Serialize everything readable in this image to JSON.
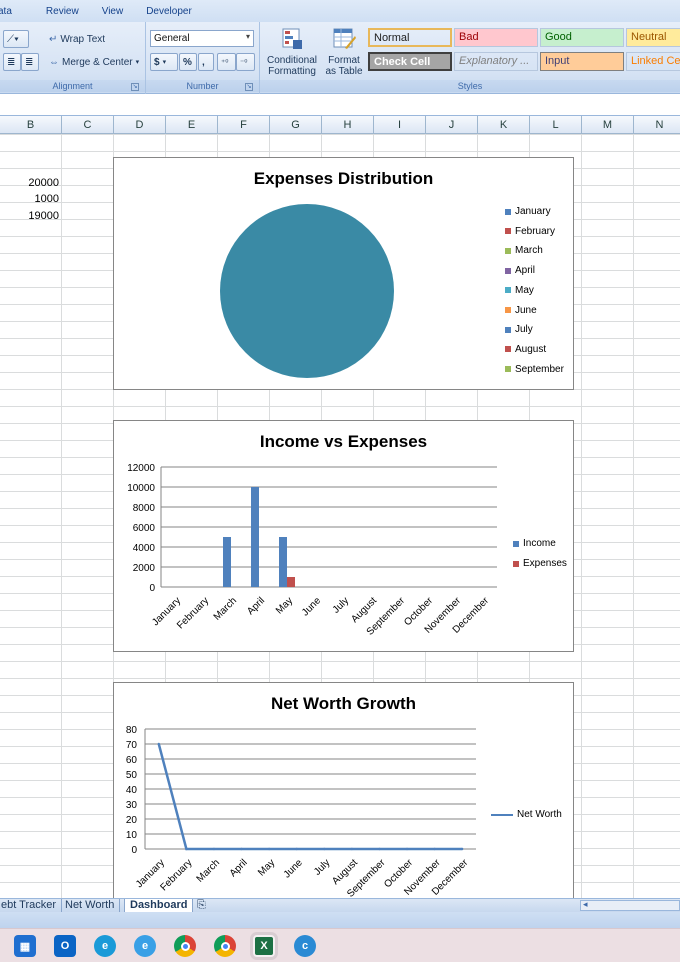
{
  "menu": {
    "items": [
      "ata",
      "Review",
      "View",
      "Developer"
    ]
  },
  "ribbon": {
    "alignment": {
      "wrap_text": "Wrap Text",
      "merge_center": "Merge & Center",
      "label": "Alignment"
    },
    "number": {
      "format": "General",
      "currency": "$",
      "percent": "%",
      "comma": ",",
      "label": "Number"
    },
    "styles": {
      "conditional_formatting_1": "Conditional",
      "conditional_formatting_2": "Formatting",
      "format_table_1": "Format",
      "format_table_2": "as Table",
      "label": "Styles",
      "cells": [
        {
          "text": "Normal",
          "bg": "#ffffff",
          "fg": "#000000"
        },
        {
          "text": "Bad",
          "bg": "#ffc7ce",
          "fg": "#9c0006"
        },
        {
          "text": "Good",
          "bg": "#c6efce",
          "fg": "#006100"
        },
        {
          "text": "Neutral",
          "bg": "#ffeb9c",
          "fg": "#9c5700"
        },
        {
          "text": "Check Cell",
          "bg": "#a5a5a5",
          "fg": "#ffffff"
        },
        {
          "text": "Explanatory ...",
          "bg": "#ffffff",
          "fg": "#7f7f7f"
        },
        {
          "text": "Input",
          "bg": "#ffcc99",
          "fg": "#3f3f76"
        },
        {
          "text": "Linked Ce",
          "bg": "#ffffff",
          "fg": "#fa7d00"
        }
      ]
    }
  },
  "sheet": {
    "columns": [
      "B",
      "C",
      "D",
      "E",
      "F",
      "G",
      "H",
      "I",
      "J",
      "K",
      "L",
      "M",
      "N"
    ],
    "values": [
      "20000",
      "1000",
      "19000"
    ]
  },
  "colors": {
    "income": "#4f81bd",
    "expenses": "#c0504d",
    "pie": "#3a8aa5",
    "net_worth": "#4f81bd"
  },
  "chart_data": [
    {
      "type": "pie",
      "title": "Expenses Distribution",
      "categories": [
        "January",
        "February",
        "March",
        "April",
        "May",
        "June",
        "July",
        "August",
        "September"
      ],
      "values": [
        0,
        0,
        0,
        0,
        1000,
        0,
        0,
        0,
        0
      ],
      "legend_colors": [
        "#4f81bd",
        "#c0504d",
        "#9bbb59",
        "#8064a2",
        "#4bacc6",
        "#f79646",
        "#4f81bd",
        "#c0504d",
        "#9bbb59"
      ],
      "legend": "right"
    },
    {
      "type": "bar",
      "title": "Income vs Expenses",
      "categories": [
        "January",
        "February",
        "March",
        "April",
        "May",
        "June",
        "July",
        "August",
        "September",
        "October",
        "November",
        "December"
      ],
      "series": [
        {
          "name": "Income",
          "values": [
            0,
            0,
            5000,
            10000,
            5000,
            0,
            0,
            0,
            0,
            0,
            0,
            0
          ]
        },
        {
          "name": "Expenses",
          "values": [
            0,
            0,
            0,
            0,
            1000,
            0,
            0,
            0,
            0,
            0,
            0,
            0
          ]
        }
      ],
      "ylim": [
        0,
        12000
      ],
      "yticks": [
        "0",
        "2000",
        "4000",
        "6000",
        "8000",
        "10000",
        "12000"
      ],
      "grid": true,
      "legend": "right"
    },
    {
      "type": "line",
      "title": "Net Worth Growth",
      "categories": [
        "January",
        "February",
        "March",
        "April",
        "May",
        "June",
        "July",
        "August",
        "September",
        "October",
        "November",
        "December"
      ],
      "series": [
        {
          "name": "Net Worth",
          "values": [
            70,
            0,
            0,
            0,
            0,
            0,
            0,
            0,
            0,
            0,
            0,
            0
          ]
        }
      ],
      "ylim": [
        0,
        80
      ],
      "yticks": [
        "0",
        "10",
        "20",
        "30",
        "40",
        "50",
        "60",
        "70",
        "80"
      ],
      "grid": true,
      "legend": "right"
    }
  ],
  "tabs": {
    "items": [
      "ebt Tracker",
      "Net Worth",
      "Dashboard"
    ],
    "active": "Dashboard"
  }
}
